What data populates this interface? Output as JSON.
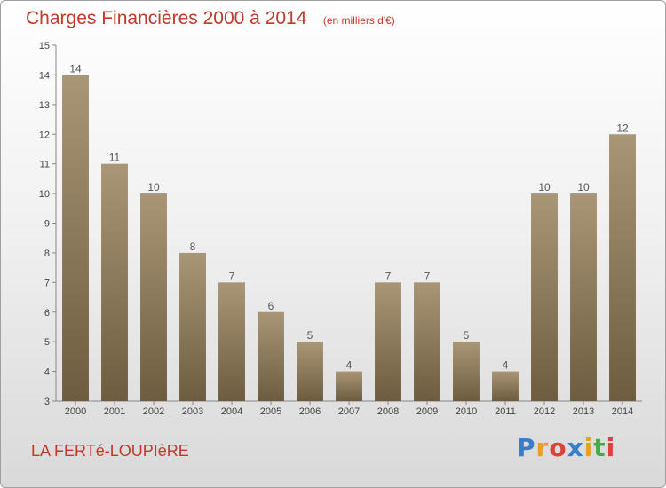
{
  "title": "Charges Financières 2000 à 2014",
  "subtitle": "(en milliers d'€)",
  "town": "LA FERTé-LOUPIèRE",
  "logo_text": "Proxiti",
  "logo_colors": [
    "#3a7ec6",
    "#e8a020",
    "#e0403a",
    "#3a7ec6",
    "#e8a020",
    "#4aa84a",
    "#e0403a"
  ],
  "chart_data": {
    "type": "bar",
    "categories": [
      "2000",
      "2001",
      "2002",
      "2003",
      "2004",
      "2005",
      "2006",
      "2007",
      "2008",
      "2009",
      "2010",
      "2011",
      "2012",
      "2013",
      "2014"
    ],
    "values": [
      14,
      11,
      10,
      8,
      7,
      6,
      5,
      4,
      7,
      7,
      5,
      4,
      10,
      10,
      12
    ],
    "ylim": [
      3,
      15
    ],
    "yticks": [
      3,
      4,
      5,
      6,
      7,
      8,
      9,
      10,
      11,
      12,
      13,
      14,
      15
    ],
    "grid": false,
    "bar_color_top": "#a89676",
    "bar_color_bottom": "#6e5c40"
  }
}
